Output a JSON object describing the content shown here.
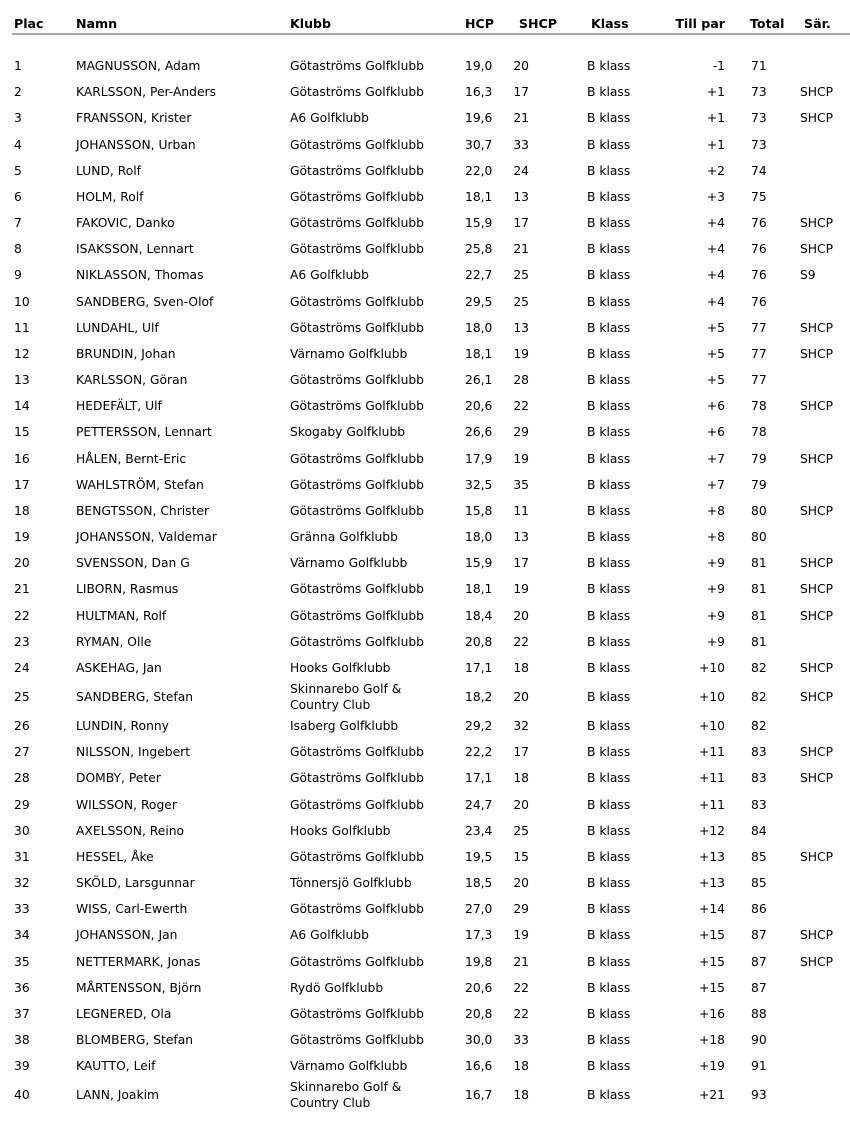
{
  "headers": {
    "plac": "Plac",
    "namn": "Namn",
    "klubb": "Klubb",
    "hcp": "HCP",
    "shcp": "SHCP",
    "klass": "Klass",
    "par": "Till par",
    "total": "Total",
    "sar": "Sär."
  },
  "rows": [
    [
      "1",
      "MAGNUSSON, Adam",
      "Götaströms Golfklubb",
      "19,0",
      "20",
      "B klass",
      "-1",
      "71",
      ""
    ],
    [
      "2",
      "KARLSSON, Per-Anders",
      "Götaströms Golfklubb",
      "16,3",
      "17",
      "B klass",
      "+1",
      "73",
      "SHCP"
    ],
    [
      "3",
      "FRANSSON, Krister",
      "A6 Golfklubb",
      "19,6",
      "21",
      "B klass",
      "+1",
      "73",
      "SHCP"
    ],
    [
      "4",
      "JOHANSSON, Urban",
      "Götaströms Golfklubb",
      "30,7",
      "33",
      "B klass",
      "+1",
      "73",
      ""
    ],
    [
      "5",
      "LUND, Rolf",
      "Götaströms Golfklubb",
      "22,0",
      "24",
      "B klass",
      "+2",
      "74",
      ""
    ],
    [
      "6",
      "HOLM, Rolf",
      "Götaströms Golfklubb",
      "18,1",
      "13",
      "B klass",
      "+3",
      "75",
      ""
    ],
    [
      "7",
      "FAKOVIC, Danko",
      "Götaströms Golfklubb",
      "15,9",
      "17",
      "B klass",
      "+4",
      "76",
      "SHCP"
    ],
    [
      "8",
      "ISAKSSON, Lennart",
      "Götaströms Golfklubb",
      "25,8",
      "21",
      "B klass",
      "+4",
      "76",
      "SHCP"
    ],
    [
      "9",
      "NIKLASSON, Thomas",
      "A6 Golfklubb",
      "22,7",
      "25",
      "B klass",
      "+4",
      "76",
      "S9"
    ],
    [
      "10",
      "SANDBERG, Sven-Olof",
      "Götaströms Golfklubb",
      "29,5",
      "25",
      "B klass",
      "+4",
      "76",
      ""
    ],
    [
      "11",
      "LUNDAHL, Ulf",
      "Götaströms Golfklubb",
      "18,0",
      "13",
      "B klass",
      "+5",
      "77",
      "SHCP"
    ],
    [
      "12",
      "BRUNDIN, Johan",
      "Värnamo Golfklubb",
      "18,1",
      "19",
      "B klass",
      "+5",
      "77",
      "SHCP"
    ],
    [
      "13",
      "KARLSSON, Göran",
      "Götaströms Golfklubb",
      "26,1",
      "28",
      "B klass",
      "+5",
      "77",
      ""
    ],
    [
      "14",
      "HEDEFÄLT, Ulf",
      "Götaströms Golfklubb",
      "20,6",
      "22",
      "B klass",
      "+6",
      "78",
      "SHCP"
    ],
    [
      "15",
      "PETTERSSON, Lennart",
      "Skogaby Golfklubb",
      "26,6",
      "29",
      "B klass",
      "+6",
      "78",
      ""
    ],
    [
      "16",
      "HÅLEN, Bernt-Eric",
      "Götaströms Golfklubb",
      "17,9",
      "19",
      "B klass",
      "+7",
      "79",
      "SHCP"
    ],
    [
      "17",
      "WAHLSTRÖM, Stefan",
      "Götaströms Golfklubb",
      "32,5",
      "35",
      "B klass",
      "+7",
      "79",
      ""
    ],
    [
      "18",
      "BENGTSSON, Christer",
      "Götaströms Golfklubb",
      "15,8",
      "11",
      "B klass",
      "+8",
      "80",
      "SHCP"
    ],
    [
      "19",
      "JOHANSSON, Valdemar",
      "Gränna Golfklubb",
      "18,0",
      "13",
      "B klass",
      "+8",
      "80",
      ""
    ],
    [
      "20",
      "SVENSSON, Dan  G",
      "Värnamo Golfklubb",
      "15,9",
      "17",
      "B klass",
      "+9",
      "81",
      "SHCP"
    ],
    [
      "21",
      "LIBORN, Rasmus",
      "Götaströms Golfklubb",
      "18,1",
      "19",
      "B klass",
      "+9",
      "81",
      "SHCP"
    ],
    [
      "22",
      "HULTMAN, Rolf",
      "Götaströms Golfklubb",
      "18,4",
      "20",
      "B klass",
      "+9",
      "81",
      "SHCP"
    ],
    [
      "23",
      "RYMAN, Olle",
      "Götaströms Golfklubb",
      "20,8",
      "22",
      "B klass",
      "+9",
      "81",
      ""
    ],
    [
      "24",
      "ASKEHAG, Jan",
      "Hooks Golfklubb",
      "17,1",
      "18",
      "B klass",
      "+10",
      "82",
      "SHCP"
    ],
    [
      "25",
      "SANDBERG, Stefan",
      "Skinnarebo Golf & Country Club",
      "18,2",
      "20",
      "B klass",
      "+10",
      "82",
      "SHCP"
    ],
    [
      "26",
      "LUNDIN, Ronny",
      "Isaberg Golfklubb",
      "29,2",
      "32",
      "B klass",
      "+10",
      "82",
      ""
    ],
    [
      "27",
      "NILSSON, Ingebert",
      "Götaströms Golfklubb",
      "22,2",
      "17",
      "B klass",
      "+11",
      "83",
      "SHCP"
    ],
    [
      "28",
      "DOMBY, Peter",
      "Götaströms Golfklubb",
      "17,1",
      "18",
      "B klass",
      "+11",
      "83",
      "SHCP"
    ],
    [
      "29",
      "WILSSON, Roger",
      "Götaströms Golfklubb",
      "24,7",
      "20",
      "B klass",
      "+11",
      "83",
      ""
    ],
    [
      "30",
      "AXELSSON, Reino",
      "Hooks Golfklubb",
      "23,4",
      "25",
      "B klass",
      "+12",
      "84",
      ""
    ],
    [
      "31",
      "HESSEL, Åke",
      "Götaströms Golfklubb",
      "19,5",
      "15",
      "B klass",
      "+13",
      "85",
      "SHCP"
    ],
    [
      "32",
      "SKÖLD, Larsgunnar",
      "Tönnersjö Golfklubb",
      "18,5",
      "20",
      "B klass",
      "+13",
      "85",
      ""
    ],
    [
      "33",
      "WISS, Carl-Ewerth",
      "Götaströms Golfklubb",
      "27,0",
      "29",
      "B klass",
      "+14",
      "86",
      ""
    ],
    [
      "34",
      "JOHANSSON, Jan",
      "A6 Golfklubb",
      "17,3",
      "19",
      "B klass",
      "+15",
      "87",
      "SHCP"
    ],
    [
      "35",
      "NETTERMARK, Jonas",
      "Götaströms Golfklubb",
      "19,8",
      "21",
      "B klass",
      "+15",
      "87",
      "SHCP"
    ],
    [
      "36",
      "MÅRTENSSON, Björn",
      "Rydö Golfklubb",
      "20,6",
      "22",
      "B klass",
      "+15",
      "87",
      ""
    ],
    [
      "37",
      "LEGNERED, Ola",
      "Götaströms Golfklubb",
      "20,8",
      "22",
      "B klass",
      "+16",
      "88",
      ""
    ],
    [
      "38",
      "BLOMBERG, Stefan",
      "Götaströms Golfklubb",
      "30,0",
      "33",
      "B klass",
      "+18",
      "90",
      ""
    ],
    [
      "39",
      "KAUTTO, Leif",
      "Värnamo Golfklubb",
      "16,6",
      "18",
      "B klass",
      "+19",
      "91",
      ""
    ],
    [
      "40",
      "LANN, Joakim",
      "Skinnarebo Golf & Country Club",
      "16,7",
      "18",
      "B klass",
      "+21",
      "93",
      ""
    ]
  ]
}
